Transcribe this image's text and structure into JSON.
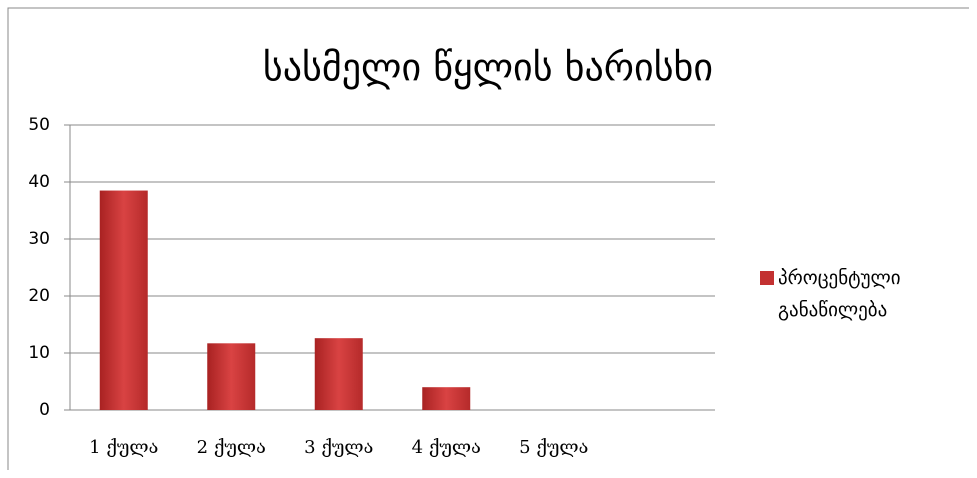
{
  "chart_data": {
    "type": "bar",
    "title": "სასმელი წყლის ხარისხი",
    "categories": [
      "1 ქულა",
      "2 ქულა",
      "3 ქულა",
      "4 ქულა",
      "5 ქულა",
      null
    ],
    "series": [
      {
        "name": "პროცენტული განაწილება",
        "color": "#c33131",
        "values": [
          38.5,
          11.7,
          12.6,
          4,
          0,
          null
        ]
      }
    ],
    "ylim": [
      0,
      50
    ],
    "yticks": [
      0,
      10,
      20,
      30,
      40,
      50
    ],
    "grid": true,
    "legend": "right"
  }
}
